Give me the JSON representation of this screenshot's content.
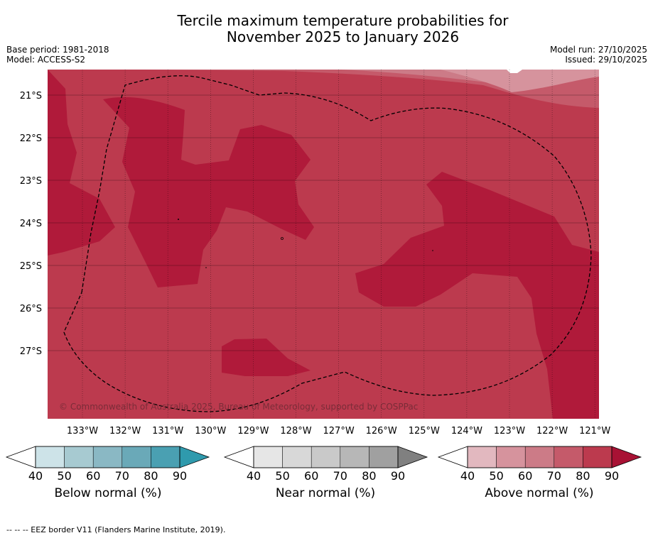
{
  "title_line1": "Tercile maximum temperature probabilities for",
  "title_line2": "November 2025 to January 2026",
  "base_period": "Base period: 1981-2018",
  "model": "Model: ACCESS-S2",
  "model_run": "Model run: 27/10/2025",
  "issued": "Issued: 29/10/2025",
  "copyright": "© Commonwealth of Australia 2025, Bureau of Meteorology, supported by COSPPac",
  "footer": "--  --  -- EEZ border V11 (Flanders Marine Institute, 2019).",
  "chart_data": {
    "type": "heatmap",
    "title": "Tercile maximum temperature probabilities for November 2025 to January 2026",
    "x_ticks": [
      "133°W",
      "132°W",
      "131°W",
      "130°W",
      "129°W",
      "128°W",
      "127°W",
      "126°W",
      "125°W",
      "124°W",
      "123°W",
      "122°W",
      "121°W"
    ],
    "y_ticks": [
      "21°S",
      "22°S",
      "23°S",
      "24°S",
      "25°S",
      "26°S",
      "27°S"
    ],
    "x_range": [
      -133.8,
      -120.9
    ],
    "y_range": [
      -28.4,
      -20.4
    ],
    "dominant_category": "Above normal",
    "regions": [
      {
        "category": "Above normal",
        "level": "70-80",
        "description": "background"
      },
      {
        "category": "Above normal",
        "level": "80-90",
        "description": "patches"
      },
      {
        "category": "Above normal",
        "level": "60-70",
        "description": "north-east corner"
      },
      {
        "category": "Above normal",
        "level": "50-60",
        "description": "north-east corner"
      }
    ],
    "colorbars": [
      {
        "label": "Below normal (%)",
        "ticks": [
          "40",
          "50",
          "60",
          "70",
          "80",
          "90"
        ],
        "colors": [
          "#cde3e8",
          "#a7cad1",
          "#8ab8c4",
          "#6aa9b8",
          "#4aa0b2",
          "#2f9aad"
        ]
      },
      {
        "label": "Near normal (%)",
        "ticks": [
          "40",
          "50",
          "60",
          "70",
          "80",
          "90"
        ],
        "colors": [
          "#e6e6e6",
          "#d8d8d8",
          "#c9c9c9",
          "#b7b7b7",
          "#a0a0a0",
          "#808080"
        ]
      },
      {
        "label": "Above normal (%)",
        "ticks": [
          "40",
          "50",
          "60",
          "70",
          "80",
          "90"
        ],
        "colors": [
          "#e2b8bf",
          "#d6939d",
          "#cc7b87",
          "#c55a6a",
          "#bc3a4e",
          "#a81234"
        ]
      }
    ]
  }
}
